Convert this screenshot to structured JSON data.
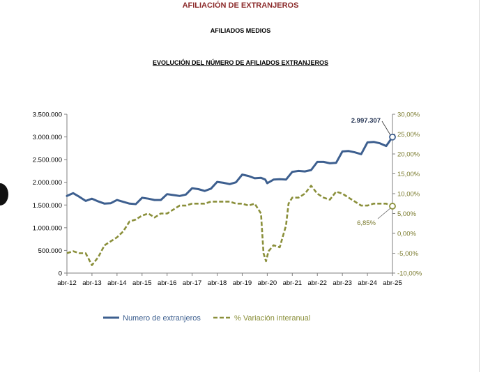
{
  "header": {
    "title": "AFILIACIÓN DE  EXTRANJEROS",
    "subtitle": "AFILIADOS MEDIOS",
    "chart_title": "EVOLUCIÓN DEL NÚMERO DE AFILIADOS EXTRANJEROS"
  },
  "colors": {
    "blue": "#3d5f8f",
    "green": "#8a8f3a",
    "axis": "#7f7f7f",
    "left_tick_text": "#000000",
    "right_tick_text": "#7b7b2f",
    "annotation_text": "#7b7b2f"
  },
  "chart_data": {
    "type": "line",
    "title": "EVOLUCIÓN DEL NÚMERO DE AFILIADOS EXTRANJEROS",
    "x_tick_labels": [
      "abr-12",
      "abr-13",
      "abr-14",
      "abr-15",
      "abr-16",
      "abr-17",
      "abr-18",
      "abr-19",
      "abr-20",
      "abr-21",
      "abr-22",
      "abr-23",
      "abr-24",
      "abr-25"
    ],
    "y_left": {
      "range": [
        0,
        3500000
      ],
      "tick_values": [
        0,
        500000,
        1000000,
        1500000,
        2000000,
        2500000,
        3000000,
        3500000
      ],
      "tick_labels": [
        "0",
        "500.000",
        "1.000.000",
        "1.500.000",
        "2.000.000",
        "2.500.000",
        "3.000.000",
        "3.500.000"
      ]
    },
    "y_right": {
      "range": [
        -10,
        30
      ],
      "tick_values": [
        -10,
        -5,
        0,
        5,
        10,
        15,
        20,
        25,
        30
      ],
      "tick_labels": [
        "-10,00%",
        "-5,00%",
        "0,00%",
        "5,00%",
        "10,00%",
        "15,00%",
        "20,00%",
        "25,00%",
        "30,00%"
      ]
    },
    "grid": false,
    "legend_position": "bottom",
    "series": [
      {
        "name": "Numero de extranjeros",
        "axis": "left",
        "style": "solid",
        "x": [
          2012.25,
          2012.5,
          2012.75,
          2013.0,
          2013.25,
          2013.5,
          2013.75,
          2014.0,
          2014.25,
          2014.5,
          2014.75,
          2015.0,
          2015.25,
          2015.5,
          2015.75,
          2016.0,
          2016.25,
          2016.5,
          2016.75,
          2017.0,
          2017.25,
          2017.5,
          2017.75,
          2018.0,
          2018.25,
          2018.5,
          2018.75,
          2019.0,
          2019.25,
          2019.5,
          2019.75,
          2020.0,
          2020.17,
          2020.25,
          2020.5,
          2020.75,
          2021.0,
          2021.25,
          2021.5,
          2021.75,
          2022.0,
          2022.25,
          2022.5,
          2022.75,
          2023.0,
          2023.25,
          2023.5,
          2023.75,
          2024.0,
          2024.25,
          2024.5,
          2024.75,
          2025.0,
          2025.25
        ],
        "values": [
          1700000,
          1760000,
          1680000,
          1590000,
          1640000,
          1580000,
          1530000,
          1540000,
          1610000,
          1570000,
          1530000,
          1520000,
          1660000,
          1640000,
          1610000,
          1610000,
          1740000,
          1720000,
          1700000,
          1730000,
          1870000,
          1850000,
          1810000,
          1860000,
          2010000,
          1990000,
          1960000,
          2000000,
          2170000,
          2140000,
          2090000,
          2100000,
          2060000,
          1980000,
          2060000,
          2070000,
          2060000,
          2230000,
          2250000,
          2240000,
          2270000,
          2450000,
          2450000,
          2420000,
          2430000,
          2680000,
          2690000,
          2660000,
          2620000,
          2880000,
          2890000,
          2860000,
          2800000,
          2997307
        ]
      },
      {
        "name": "% Variación interanual",
        "axis": "right",
        "style": "dashed",
        "x": [
          2012.25,
          2012.5,
          2012.75,
          2013.0,
          2013.25,
          2013.5,
          2013.75,
          2014.0,
          2014.25,
          2014.5,
          2014.75,
          2015.0,
          2015.25,
          2015.5,
          2015.75,
          2016.0,
          2016.25,
          2016.5,
          2016.75,
          2017.0,
          2017.25,
          2017.5,
          2017.75,
          2018.0,
          2018.25,
          2018.5,
          2018.75,
          2019.0,
          2019.25,
          2019.5,
          2019.75,
          2020.0,
          2020.1,
          2020.2,
          2020.3,
          2020.5,
          2020.75,
          2021.0,
          2021.1,
          2021.25,
          2021.5,
          2021.75,
          2022.0,
          2022.25,
          2022.5,
          2022.75,
          2023.0,
          2023.25,
          2023.5,
          2023.75,
          2024.0,
          2024.25,
          2024.5,
          2024.75,
          2025.0,
          2025.25
        ],
        "values": [
          -5.0,
          -4.5,
          -5.0,
          -5.0,
          -8.0,
          -6.0,
          -3.0,
          -2.0,
          -1.0,
          0.5,
          3.0,
          3.5,
          4.5,
          5.0,
          4.0,
          5.0,
          5.0,
          6.0,
          7.0,
          7.0,
          7.5,
          7.5,
          7.5,
          8.0,
          8.0,
          8.0,
          8.0,
          7.5,
          7.5,
          7.0,
          7.5,
          5.0,
          -5.0,
          -7.0,
          -4.5,
          -3.0,
          -3.5,
          2.0,
          7.5,
          9.0,
          9.0,
          10.0,
          12.0,
          10.0,
          9.0,
          8.5,
          10.5,
          10.0,
          9.0,
          8.0,
          7.0,
          7.0,
          7.5,
          7.5,
          7.5,
          6.85
        ]
      }
    ],
    "annotations": [
      {
        "text": "2.997.307",
        "series": "Numero de extranjeros",
        "x": 2025.25,
        "value": 2997307
      },
      {
        "text": "6,85%",
        "series": "% Variación interanual",
        "x": 2025.25,
        "value": 6.85
      }
    ]
  }
}
